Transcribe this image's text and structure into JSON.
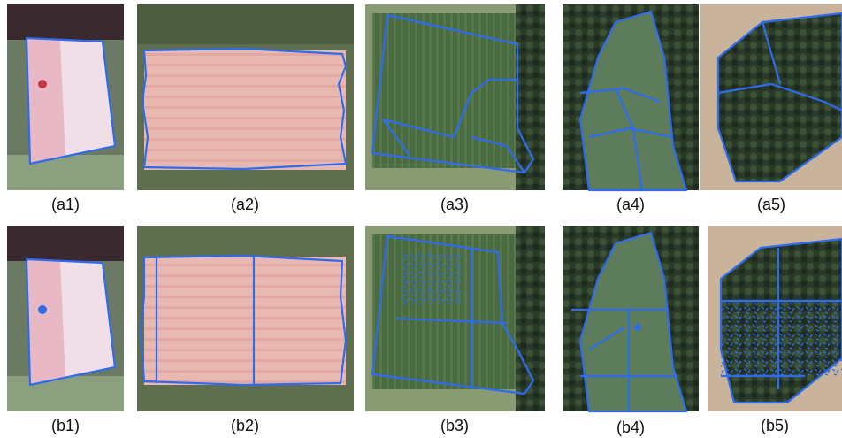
{
  "labels": {
    "a": [
      "(a1)",
      "(a2)",
      "(a3)",
      "(a4)",
      "(a5)"
    ],
    "b": [
      "(b1)",
      "(b2)",
      "(b3)",
      "(b4)",
      "(b5)"
    ]
  }
}
